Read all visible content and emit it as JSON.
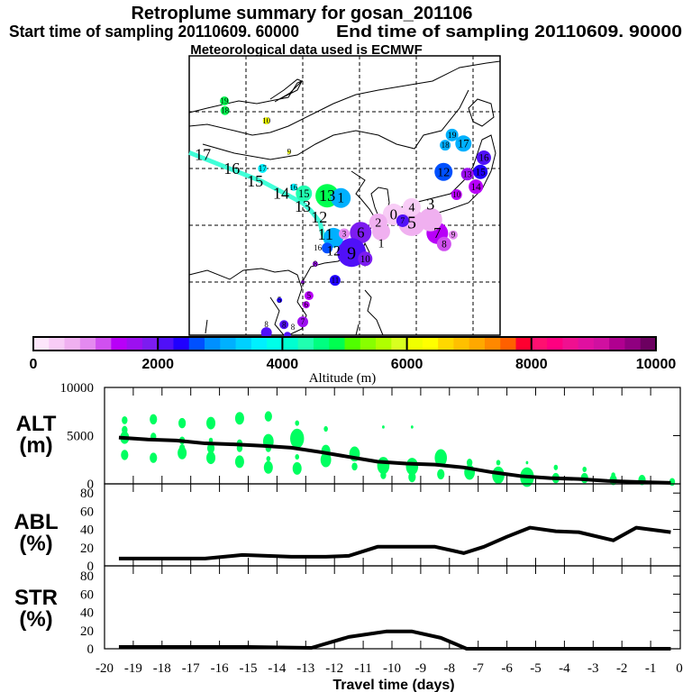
{
  "header": {
    "title": "Retroplume summary for gosan_201106",
    "start": "Start time of sampling 20110609. 60000",
    "end": "End time of sampling 20110609. 90000",
    "met": "Meteorological data used is ECMWF"
  },
  "chart_data": [
    {
      "type": "map",
      "title": "Retroplume map",
      "lon_range": [
        90,
        145
      ],
      "lat_range": [
        10.5,
        60
      ],
      "grid_lon": [
        100,
        110,
        120,
        130,
        140
      ],
      "grid_lat": [
        20,
        30,
        40,
        50
      ],
      "trajectory_color": "#40ffd8",
      "trajectory": [
        [
          90,
          42.8
        ],
        [
          102.9,
          37.7
        ],
        [
          110,
          33.9
        ],
        [
          111.4,
          32.6
        ],
        [
          113,
          30.6
        ],
        [
          113.5,
          28.5
        ],
        [
          114.7,
          25.9
        ]
      ],
      "trajectory_labels": [
        {
          "label": "17",
          "lon": 92.4,
          "lat": 42.5
        },
        {
          "label": "16",
          "lon": 97.5,
          "lat": 40
        },
        {
          "label": "15",
          "lon": 101.6,
          "lat": 37.8
        },
        {
          "label": "14",
          "lon": 106.2,
          "lat": 35.6
        },
        {
          "label": "13",
          "lon": 110,
          "lat": 33.3
        },
        {
          "label": "12",
          "lon": 112.9,
          "lat": 31.4
        },
        {
          "label": "11",
          "lon": 114,
          "lat": 28.4
        }
      ],
      "markers": [
        {
          "label": "19",
          "lon": 96.2,
          "lat": 51.9,
          "alt": 4750,
          "w": 5
        },
        {
          "label": "18",
          "lon": 96.3,
          "lat": 50.2,
          "alt": 4750,
          "w": 5
        },
        {
          "label": "10",
          "lon": 103.6,
          "lat": 48.4,
          "alt": 6100,
          "w": 4
        },
        {
          "label": "9",
          "lon": 107.6,
          "lat": 42.9,
          "alt": 6100,
          "w": 2
        },
        {
          "label": "17",
          "lon": 102.9,
          "lat": 40,
          "alt": 3700,
          "w": 5
        },
        {
          "label": "16",
          "lon": 108.4,
          "lat": 36.7,
          "alt": 3700,
          "w": 4
        },
        {
          "label": "15",
          "lon": 110.2,
          "lat": 35.6,
          "alt": 4300,
          "w": 9
        },
        {
          "label": "13",
          "lon": 114.3,
          "lat": 35.2,
          "alt": 4800,
          "w": 13
        },
        {
          "label": "1",
          "lon": 116.7,
          "lat": 34.8,
          "alt": 3100,
          "w": 11
        },
        {
          "label": "12",
          "lon": 134.8,
          "lat": 39.4,
          "alt": 2600,
          "w": 10
        },
        {
          "label": "19",
          "lon": 136.3,
          "lat": 45.9,
          "alt": 3100,
          "w": 7
        },
        {
          "label": "18",
          "lon": 135.1,
          "lat": 44.1,
          "alt": 3100,
          "w": 6
        },
        {
          "label": "17",
          "lon": 138.3,
          "lat": 44.4,
          "alt": 3100,
          "w": 9
        },
        {
          "label": "16",
          "lon": 141.9,
          "lat": 41.9,
          "alt": 2200,
          "w": 8
        },
        {
          "label": "15",
          "lon": 141.3,
          "lat": 39.4,
          "alt": 2300,
          "w": 8
        },
        {
          "label": "13",
          "lon": 139,
          "lat": 39,
          "alt": 1600,
          "w": 7
        },
        {
          "label": "14",
          "lon": 140.5,
          "lat": 36.8,
          "alt": 1300,
          "w": 8
        },
        {
          "label": "10",
          "lon": 137.1,
          "lat": 35.4,
          "alt": 1300,
          "w": 6
        },
        {
          "label": "7",
          "lon": 133.7,
          "lat": 28.6,
          "alt": 1300,
          "w": 12
        },
        {
          "label": "8",
          "lon": 134.9,
          "lat": 26.7,
          "alt": 1100,
          "w": 8
        },
        {
          "label": "9",
          "lon": 136.5,
          "lat": 28.3,
          "alt": 800,
          "w": 5
        },
        {
          "label": "3",
          "lon": 132.5,
          "lat": 31,
          "alt": 600,
          "w": 13
        },
        {
          "label": "5",
          "lon": 129.2,
          "lat": 30.5,
          "alt": 600,
          "w": 15
        },
        {
          "label": "4",
          "lon": 129.2,
          "lat": 33.2,
          "alt": 300,
          "w": 10
        },
        {
          "label": "0",
          "lon": 126,
          "lat": 31.9,
          "alt": 300,
          "w": 12
        },
        {
          "label": "2",
          "lon": 123.3,
          "lat": 30.5,
          "alt": 600,
          "w": 10
        },
        {
          "label": "1",
          "lon": 123.8,
          "lat": 28.9,
          "alt": 600,
          "w": 10
        },
        {
          "label": "7",
          "lon": 127.6,
          "lat": 30.8,
          "alt": 2100,
          "w": 7
        },
        {
          "label": "6",
          "lon": 120.2,
          "lat": 28.7,
          "alt": 1900,
          "w": 12
        },
        {
          "label": "9",
          "lon": 118.6,
          "lat": 25.2,
          "alt": 2100,
          "w": 16
        },
        {
          "label": "10",
          "lon": 121,
          "lat": 24.1,
          "alt": 1900,
          "w": 8
        },
        {
          "label": "12",
          "lon": 115.4,
          "lat": 27.8,
          "alt": 3100,
          "w": 11
        },
        {
          "label": "16",
          "lon": 114.3,
          "lat": 26,
          "alt": 2600,
          "w": 6
        },
        {
          "label": "3",
          "lon": 117.3,
          "lat": 28.5,
          "alt": 800,
          "w": 6
        },
        {
          "label": "8",
          "lon": 112.2,
          "lat": 23.2,
          "alt": 1600,
          "w": 3
        },
        {
          "label": "11",
          "lon": 115.7,
          "lat": 20.3,
          "alt": 2300,
          "w": 6
        },
        {
          "label": "4",
          "lon": 110,
          "lat": 20,
          "alt": 1600,
          "w": 2
        },
        {
          "label": "5",
          "lon": 111.1,
          "lat": 17.6,
          "alt": 1300,
          "w": 5
        },
        {
          "label": "6",
          "lon": 110.6,
          "lat": 16,
          "alt": 1300,
          "w": 4
        },
        {
          "label": "5",
          "lon": 105.9,
          "lat": 16.8,
          "alt": 2300,
          "w": 3
        },
        {
          "label": "7",
          "lon": 110,
          "lat": 13,
          "alt": 1600,
          "w": 6
        },
        {
          "label": "8",
          "lon": 106.7,
          "lat": 12.5,
          "alt": 2100,
          "w": 5
        },
        {
          "label": "8",
          "lon": 103.6,
          "lat": 11.1,
          "alt": 2100,
          "w": 6
        },
        {
          "label": "8",
          "lon": 107.3,
          "lat": 10.6,
          "alt": 2100,
          "w": 4
        }
      ]
    },
    {
      "type": "colorbar",
      "xlabel": "Altitude (m)",
      "range": [
        0,
        10000
      ],
      "step": 250,
      "tick_labels": [
        "0",
        "2000",
        "4000",
        "6000",
        "8000",
        "10000"
      ],
      "colors": [
        "#fde6fb",
        "#f8ccf6",
        "#f0b0f0",
        "#e48af0",
        "#d050f0",
        "#b800f8",
        "#9c10f0",
        "#7c1cf0",
        "#5010f8",
        "#2000ff",
        "#0050ff",
        "#0090ff",
        "#00b0ff",
        "#00d0ff",
        "#00f0ff",
        "#00ffe8",
        "#00ffd0",
        "#20ffb0",
        "#00ff80",
        "#00ff50",
        "#50ff00",
        "#88ff00",
        "#b0ff00",
        "#d8ff20",
        "#f0ff00",
        "#ffff00",
        "#ffd800",
        "#ffc000",
        "#ffa800",
        "#ff8800",
        "#ff6000",
        "#ff0030",
        "#ff1070",
        "#ff0080",
        "#f01090",
        "#e010a0",
        "#d010a0",
        "#b00090",
        "#900080",
        "#6c0060"
      ]
    },
    {
      "type": "line",
      "panel": "ALT",
      "ylabel": "ALT",
      "yunit": "(m)",
      "ylim": [
        0,
        10000
      ],
      "ytick_labels": [
        "10000",
        "5000",
        "0"
      ],
      "line_color": "#000000",
      "scatter_color": "#00ff60",
      "x": [
        -19.5,
        -18.5,
        -17.5,
        -16.5,
        -15.5,
        -14.5,
        -13.5,
        -12.5,
        -11.5,
        -10.5,
        -9.5,
        -8.5,
        -7.5,
        -6.5,
        -5.5,
        -4.5,
        -3.5,
        -2.5,
        -1.5,
        -0.3
      ],
      "values": [
        4800,
        4600,
        4500,
        4200,
        4100,
        3950,
        3750,
        3300,
        2800,
        2300,
        2100,
        2000,
        1700,
        1200,
        800,
        600,
        500,
        300,
        200,
        100
      ],
      "scatter": [
        [
          -19.3,
          6600,
          3
        ],
        [
          -19.3,
          5600,
          3
        ],
        [
          -19.3,
          4800,
          5
        ],
        [
          -19.3,
          3000,
          4
        ],
        [
          -18.3,
          6700,
          4
        ],
        [
          -18.3,
          4900,
          3
        ],
        [
          -18.3,
          2700,
          4
        ],
        [
          -17.3,
          6300,
          4
        ],
        [
          -17.3,
          4500,
          3
        ],
        [
          -17.3,
          3700,
          3
        ],
        [
          -17.3,
          3200,
          5
        ],
        [
          -16.3,
          6300,
          5
        ],
        [
          -16.3,
          4500,
          2
        ],
        [
          -16.3,
          3700,
          4
        ],
        [
          -16.3,
          2700,
          5
        ],
        [
          -15.3,
          6800,
          5
        ],
        [
          -15.3,
          4200,
          3
        ],
        [
          -15.3,
          3700,
          3
        ],
        [
          -15.3,
          2300,
          5
        ],
        [
          -14.3,
          7000,
          4
        ],
        [
          -14.3,
          4400,
          6
        ],
        [
          -14.3,
          3700,
          3
        ],
        [
          -14.3,
          2600,
          2
        ],
        [
          -14.3,
          1700,
          5
        ],
        [
          -13.3,
          6300,
          2
        ],
        [
          -13.3,
          4700,
          8
        ],
        [
          -13.3,
          2800,
          2
        ],
        [
          -13.3,
          1600,
          5
        ],
        [
          -12.3,
          5700,
          2
        ],
        [
          -12.3,
          3400,
          5
        ],
        [
          -12.3,
          2500,
          6
        ],
        [
          -11.3,
          3100,
          6
        ],
        [
          -11.3,
          1800,
          3
        ],
        [
          -10.3,
          5900,
          1
        ],
        [
          -10.3,
          1900,
          7
        ],
        [
          -10.3,
          900,
          3
        ],
        [
          -9.3,
          5900,
          1
        ],
        [
          -9.3,
          1800,
          7
        ],
        [
          -9.3,
          700,
          4
        ],
        [
          -8.3,
          2700,
          7
        ],
        [
          -8.3,
          1000,
          4
        ],
        [
          -7.3,
          2200,
          3
        ],
        [
          -7.3,
          1200,
          6
        ],
        [
          -6.3,
          2200,
          2
        ],
        [
          -6.3,
          900,
          7
        ],
        [
          -5.3,
          2200,
          1
        ],
        [
          -5.3,
          700,
          8
        ],
        [
          -4.3,
          1700,
          2
        ],
        [
          -4.3,
          600,
          4
        ],
        [
          -3.3,
          1500,
          2
        ],
        [
          -3.3,
          600,
          4
        ],
        [
          -2.3,
          900,
          2
        ],
        [
          -2.3,
          400,
          4
        ],
        [
          -1.3,
          400,
          4
        ],
        [
          -0.25,
          200,
          3
        ]
      ]
    },
    {
      "type": "line",
      "panel": "ABL",
      "ylabel": "ABL",
      "yunit": "(%)",
      "ylim": [
        0,
        90
      ],
      "ytick_labels": [
        "80",
        "60",
        "40",
        "20",
        "0"
      ],
      "x": [
        -19.5,
        -18,
        -16.5,
        -15.2,
        -13.5,
        -12.3,
        -11.5,
        -10.5,
        -8.5,
        -7.5,
        -6.8,
        -6,
        -5.2,
        -4.3,
        -3.5,
        -2.3,
        -1.5,
        -0.3
      ],
      "values": [
        8,
        8,
        8,
        12,
        10,
        10,
        11,
        21,
        21,
        14,
        21,
        32,
        42,
        38,
        37,
        28,
        42,
        37
      ]
    },
    {
      "type": "line",
      "panel": "STR",
      "ylabel": "STR",
      "yunit": "(%)",
      "ylim": [
        0,
        90
      ],
      "ytick_labels": [
        "80",
        "60",
        "40",
        "20",
        "0"
      ],
      "x": [
        -19.5,
        -15,
        -12.8,
        -11.5,
        -10.2,
        -9.3,
        -8.3,
        -7.4,
        -0.3
      ],
      "values": [
        2,
        2,
        1,
        13,
        19,
        19,
        12,
        0,
        0
      ],
      "xlabel": "Travel time (days)",
      "xlim": [
        -20,
        0
      ],
      "xtick_labels": [
        "-20",
        "-19",
        "-18",
        "-17",
        "-16",
        "-15",
        "-14",
        "-13",
        "-12",
        "-11",
        "-10",
        "-9",
        "-8",
        "-7",
        "-6",
        "-5",
        "-4",
        "-3",
        "-2",
        "-1",
        "0"
      ]
    }
  ]
}
